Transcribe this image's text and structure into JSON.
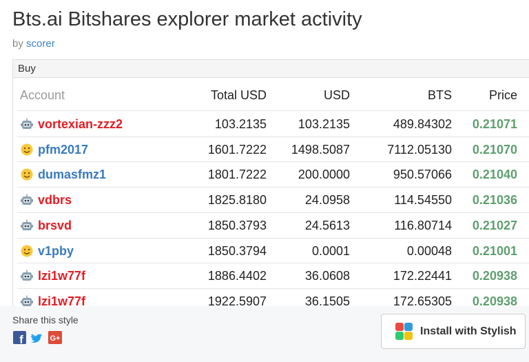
{
  "header": {
    "title": "Bts.ai Bitshares explorer market activity",
    "by": "by",
    "author": "scorer"
  },
  "panel": {
    "title": "Buy"
  },
  "table": {
    "columns": [
      "Account",
      "Total USD",
      "USD",
      "BTS",
      "Price"
    ],
    "rows": [
      {
        "icon": "robot",
        "cells": [
          "vortexian-zzz2",
          "103.2135",
          "103.2135",
          "489.84302",
          "0.21071"
        ]
      },
      {
        "icon": "smiley",
        "cells": [
          "pfm2017",
          "1601.7222",
          "1498.5087",
          "7112.05130",
          "0.21070"
        ]
      },
      {
        "icon": "smiley",
        "cells": [
          "dumasfmz1",
          "1801.7222",
          "200.0000",
          "950.57066",
          "0.21040"
        ]
      },
      {
        "icon": "robot",
        "cells": [
          "vdbrs",
          "1825.8180",
          "24.0958",
          "114.54550",
          "0.21036"
        ]
      },
      {
        "icon": "robot",
        "cells": [
          "brsvd",
          "1850.3793",
          "24.5613",
          "116.80714",
          "0.21027"
        ]
      },
      {
        "icon": "smiley",
        "cells": [
          "v1pby",
          "1850.3794",
          "0.0001",
          "0.00048",
          "0.21001"
        ]
      },
      {
        "icon": "robot",
        "cells": [
          "lzi1w77f",
          "1886.4402",
          "36.0608",
          "172.22441",
          "0.20938"
        ]
      },
      {
        "icon": "robot",
        "cells": [
          "lzi1w77f",
          "1922.5907",
          "36.1505",
          "172.65305",
          "0.20938"
        ]
      }
    ]
  },
  "share": {
    "label": "Share this style",
    "facebook": "f",
    "google": "G+"
  },
  "button": {
    "label": "Install with Stylish"
  }
}
